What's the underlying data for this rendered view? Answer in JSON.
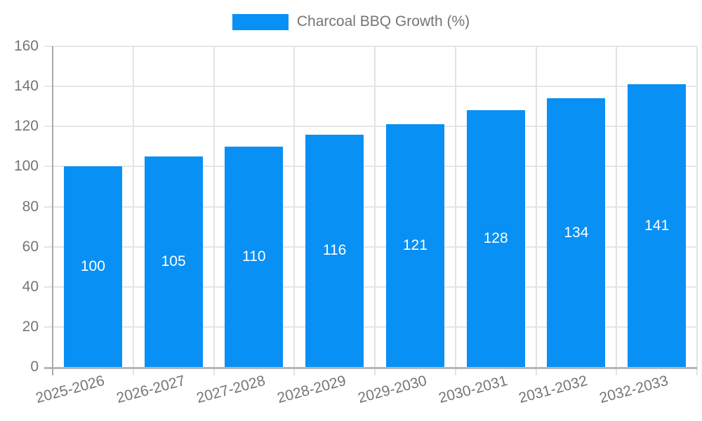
{
  "legend": {
    "label": "Charcoal BBQ Growth (%)"
  },
  "chart_data": {
    "type": "bar",
    "title": "",
    "categories": [
      "2025-2026",
      "2026-2027",
      "2027-2028",
      "2028-2029",
      "2029-2030",
      "2030-2031",
      "2031-2032",
      "2032-2033"
    ],
    "series": [
      {
        "name": "Charcoal BBQ Growth (%)",
        "values": [
          100,
          105,
          110,
          116,
          121,
          128,
          134,
          141
        ]
      }
    ],
    "value_labels": [
      "100",
      "105",
      "110",
      "116",
      "121",
      "128",
      "134",
      "141"
    ],
    "xlabel": "",
    "ylabel": "",
    "ylim": [
      0,
      160
    ],
    "yticks": [
      0,
      20,
      40,
      60,
      80,
      100,
      120,
      140,
      160
    ],
    "grid": true,
    "legend_position": "top-center",
    "x_label_rotation_deg": -15,
    "bar_color": "#0990f4",
    "value_label_color": "#ffffff",
    "axis_text_color": "#757575",
    "gridline_color": "#e6e6e6",
    "axis_line_color": "#ababab",
    "background_color": "#ffffff"
  }
}
